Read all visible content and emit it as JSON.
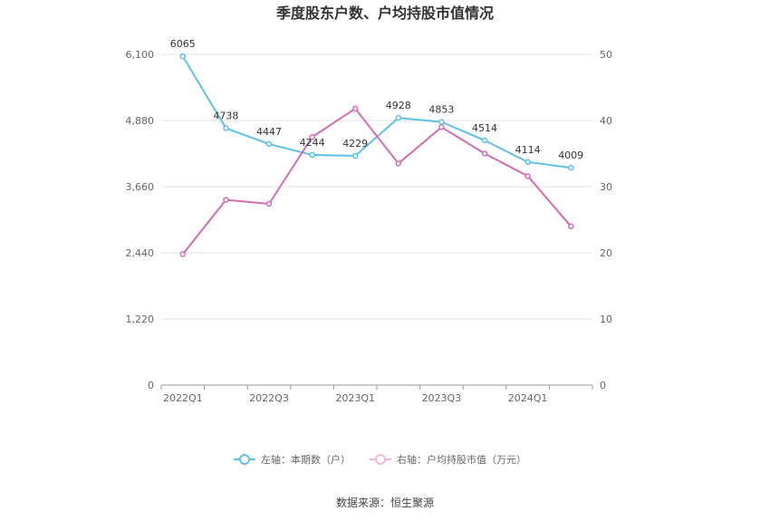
{
  "chart_data": {
    "type": "line",
    "title": "季度股东户数、户均持股市值情况",
    "source_label": "数据来源：恒生聚源",
    "categories": [
      "2022Q1",
      "2022Q2",
      "2022Q3",
      "2022Q4",
      "2023Q1",
      "2023Q2",
      "2023Q3",
      "2023Q4",
      "2024Q1",
      "2024Q2"
    ],
    "x_tick_labels": [
      "2022Q1",
      "2022Q3",
      "2023Q1",
      "2023Q3",
      "2024Q1"
    ],
    "left_axis": {
      "ticks": [
        "0",
        "1,220",
        "2,440",
        "3,660",
        "4,880",
        "6,100"
      ],
      "ylim": [
        0,
        6100
      ]
    },
    "right_axis": {
      "ticks": [
        "0",
        "10",
        "20",
        "30",
        "40",
        "50"
      ],
      "ylim": [
        0,
        50
      ]
    },
    "series": [
      {
        "name": "左轴：本期数（户）",
        "axis": "left",
        "color": "#5bc0eb",
        "values": [
          6065,
          4738,
          4447,
          4244,
          4229,
          4928,
          4853,
          4514,
          4114,
          4009
        ],
        "labels": [
          "6065",
          "4738",
          "4447",
          "4244",
          "4229",
          "4928",
          "4853",
          "4514",
          "4114",
          "4009"
        ]
      },
      {
        "name": "右轴：户均持股市值（万元）",
        "axis": "right",
        "color": "#d66bb4",
        "values": [
          19.8,
          28.0,
          27.4,
          37.5,
          41.8,
          33.5,
          39.0,
          35.0,
          31.6,
          24.0
        ]
      }
    ],
    "grid": true,
    "legend_position": "bottom"
  }
}
